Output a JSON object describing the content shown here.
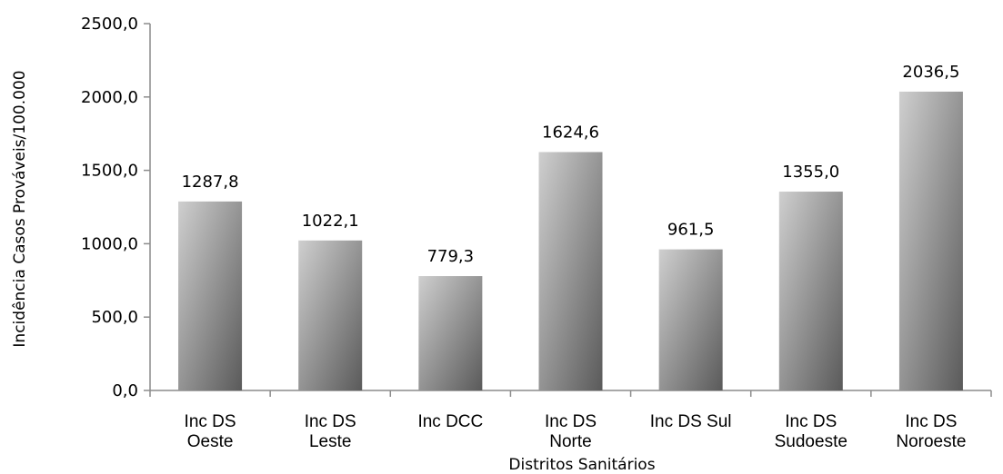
{
  "chart_data": {
    "type": "bar",
    "categories": [
      [
        "Inc DS",
        "Oeste"
      ],
      [
        "Inc DS",
        "Leste"
      ],
      [
        "Inc DCC"
      ],
      [
        "Inc DS",
        "Norte"
      ],
      [
        "Inc DS Sul"
      ],
      [
        "Inc DS",
        "Sudoeste"
      ],
      [
        "Inc DS",
        "Noroeste"
      ]
    ],
    "values": [
      1287.8,
      1022.1,
      779.3,
      1624.6,
      961.5,
      1355.0,
      2036.5
    ],
    "value_labels": [
      "1287,8",
      "1022,1",
      "779,3",
      "1624,6",
      "961,5",
      "1355,0",
      "2036,5"
    ],
    "yticks": [
      0,
      500,
      1000,
      1500,
      2000,
      2500
    ],
    "ytick_labels": [
      "0,0",
      "500,0",
      "1000,0",
      "1500,0",
      "2000,0",
      "2500,0"
    ],
    "ylim": [
      0,
      2500
    ],
    "xlabel": "Distritos Sanitários",
    "ylabel": "Incidência Casos Prováveis/100.000",
    "grid": false,
    "legend": "none",
    "colors": {
      "bar_light": "#cfcfcf",
      "bar_dark": "#5a5a5a",
      "axis": "#8c8c8c"
    }
  }
}
